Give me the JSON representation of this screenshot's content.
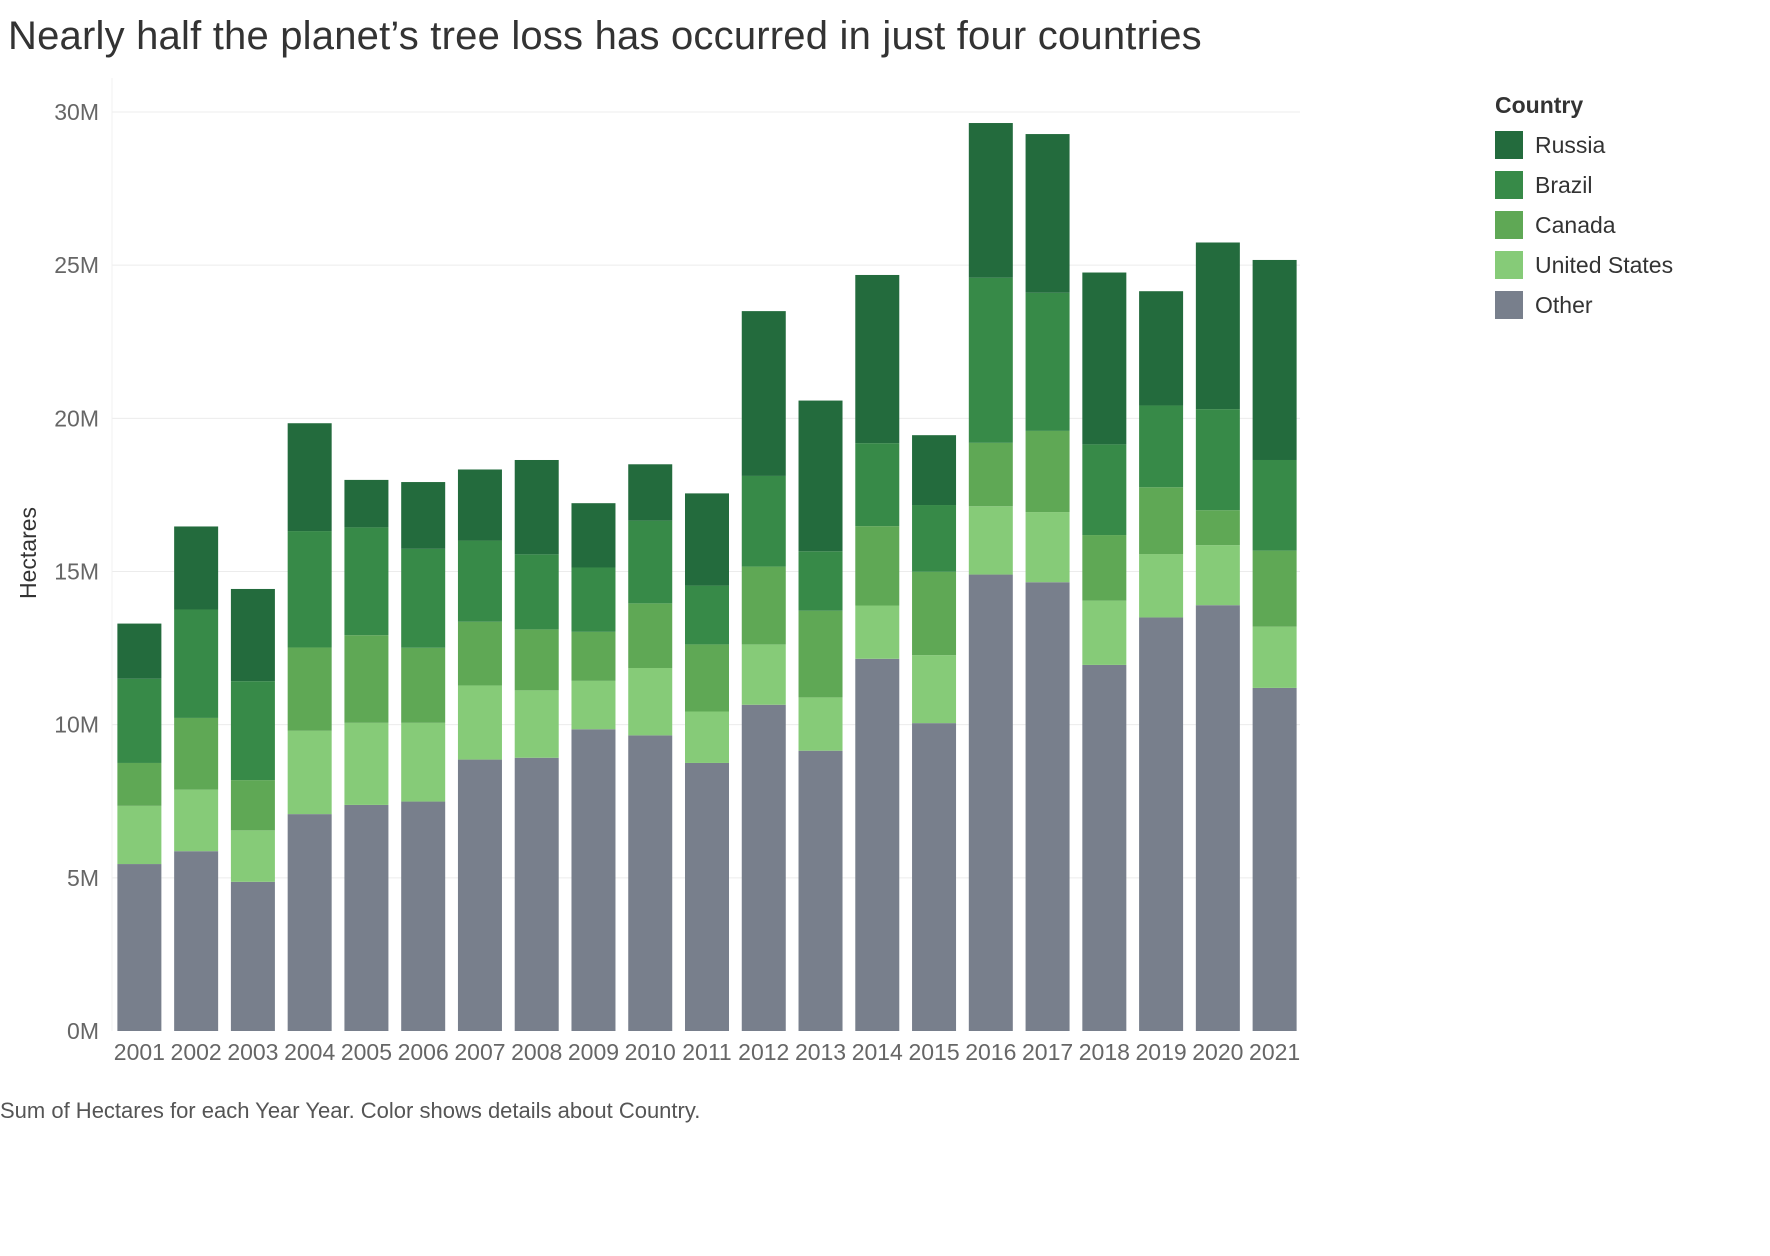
{
  "title": "Nearly half the planet’s tree loss has occurred in just four countries",
  "footer": "Sum of Hectares for each Year Year.  Color shows details about Country.",
  "legend": {
    "title": "Country",
    "items": [
      {
        "label": "Russia",
        "color": "#236b3d"
      },
      {
        "label": "Brazil",
        "color": "#378a48"
      },
      {
        "label": "Canada",
        "color": "#5fa855"
      },
      {
        "label": "United States",
        "color": "#86cb78"
      },
      {
        "label": "Other",
        "color": "#787f8c"
      }
    ]
  },
  "chart_data": {
    "type": "bar",
    "stacked": true,
    "title": "Nearly half the planet’s tree loss has occurred in just four countries",
    "xlabel": "",
    "ylabel": "Hectares",
    "ylim": [
      0,
      30000000
    ],
    "yticks": [
      0,
      5000000,
      10000000,
      15000000,
      20000000,
      25000000,
      30000000
    ],
    "ytick_labels": [
      "0M",
      "5M",
      "10M",
      "15M",
      "20M",
      "25M",
      "30M"
    ],
    "gridlines": true,
    "legend_position": "top-right",
    "categories": [
      "2001",
      "2002",
      "2003",
      "2004",
      "2005",
      "2006",
      "2007",
      "2008",
      "2009",
      "2010",
      "2011",
      "2012",
      "2013",
      "2014",
      "2015",
      "2016",
      "2017",
      "2018",
      "2019",
      "2020",
      "2021"
    ],
    "series": [
      {
        "name": "Other",
        "color": "#787f8c",
        "values": [
          5450000,
          5870000,
          4870000,
          7080000,
          7380000,
          7490000,
          8860000,
          8920000,
          9850000,
          9650000,
          8750000,
          10650000,
          9150000,
          12150000,
          10050000,
          14900000,
          14650000,
          11950000,
          13500000,
          13900000,
          11200000
        ]
      },
      {
        "name": "United States",
        "color": "#86cb78",
        "values": [
          1900000,
          2010000,
          1680000,
          2720000,
          2680000,
          2570000,
          2420000,
          2200000,
          1580000,
          2200000,
          1680000,
          1970000,
          1740000,
          1740000,
          2220000,
          2230000,
          2290000,
          2100000,
          2070000,
          1960000,
          2000000
        ]
      },
      {
        "name": "Canada",
        "color": "#5fa855",
        "values": [
          1400000,
          2340000,
          1640000,
          2720000,
          2860000,
          2450000,
          2080000,
          1990000,
          1600000,
          2110000,
          2190000,
          2540000,
          2830000,
          2590000,
          2720000,
          2070000,
          2650000,
          2140000,
          2180000,
          1140000,
          2480000
        ]
      },
      {
        "name": "Brazil",
        "color": "#378a48",
        "values": [
          2750000,
          3540000,
          3230000,
          3800000,
          3520000,
          3230000,
          2650000,
          2450000,
          2100000,
          2700000,
          1920000,
          2960000,
          1940000,
          2710000,
          2180000,
          5390000,
          4510000,
          2960000,
          2670000,
          3300000,
          2960000
        ]
      },
      {
        "name": "Russia",
        "color": "#236b3d",
        "values": [
          1800000,
          2710000,
          3010000,
          3520000,
          1550000,
          2180000,
          2320000,
          3080000,
          2100000,
          1840000,
          3010000,
          5380000,
          4920000,
          5490000,
          2280000,
          5050000,
          5180000,
          5610000,
          3730000,
          5440000,
          6530000
        ]
      }
    ]
  }
}
